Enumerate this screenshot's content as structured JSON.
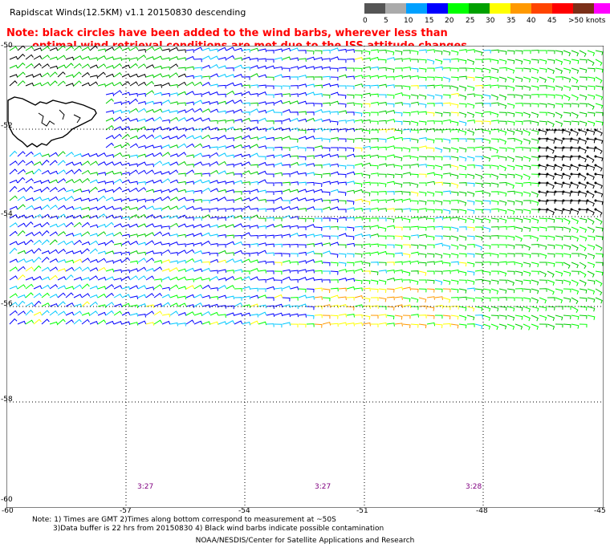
{
  "title": "Rapidscat Winds(12.5KM) v1.1 20150830 descending",
  "note": {
    "line1": "Note: black circles have been added to the wind barbs, wherever less than",
    "line2": "optimal wind retrieval conditions are met due to the ISS attitude changes."
  },
  "legend": {
    "unit_label": ">50 knots",
    "labels": [
      "0",
      "5",
      "10",
      "15",
      "20",
      "25",
      "30",
      "35",
      "40",
      "45"
    ],
    "colors": [
      "#555555",
      "#aaaaaa",
      "#00a0ff",
      "#0000ff",
      "#00ff00",
      "#00a000",
      "#ffff00",
      "#ff9900",
      "#ff4400",
      "#ff0000",
      "#7b2f18",
      "#ff00ff",
      "#6600cc"
    ]
  },
  "map": {
    "lat_labels": [
      "-50",
      "-52",
      "-54",
      "-56",
      "-58",
      "-60"
    ],
    "lon_labels": [
      "-60",
      "-57",
      "-54",
      "-51",
      "-48",
      "-45"
    ],
    "time_labels": [
      "3:27",
      "3:27",
      "3:28"
    ],
    "wind_colors": {
      "calm": "#00c8ff",
      "light": "#0000ff",
      "moderate": "#00cc00",
      "fresh": "#00ff00",
      "strong": "#ffff00",
      "gale": "#ff9900",
      "flagged": "#000000"
    },
    "coast_color": "#000000",
    "grid_color": "#000000",
    "time_color": "#800080"
  },
  "footnote": {
    "line1": "Note: 1) Times are GMT 2)Times along bottom correspond to measurement at ~50S",
    "line2": "3)Data buffer is 22 hrs from 20150830 4) Black wind barbs indicate possible contamination"
  },
  "credit": "NOAA/NESDIS/Center for Satellite Applications and Research"
}
